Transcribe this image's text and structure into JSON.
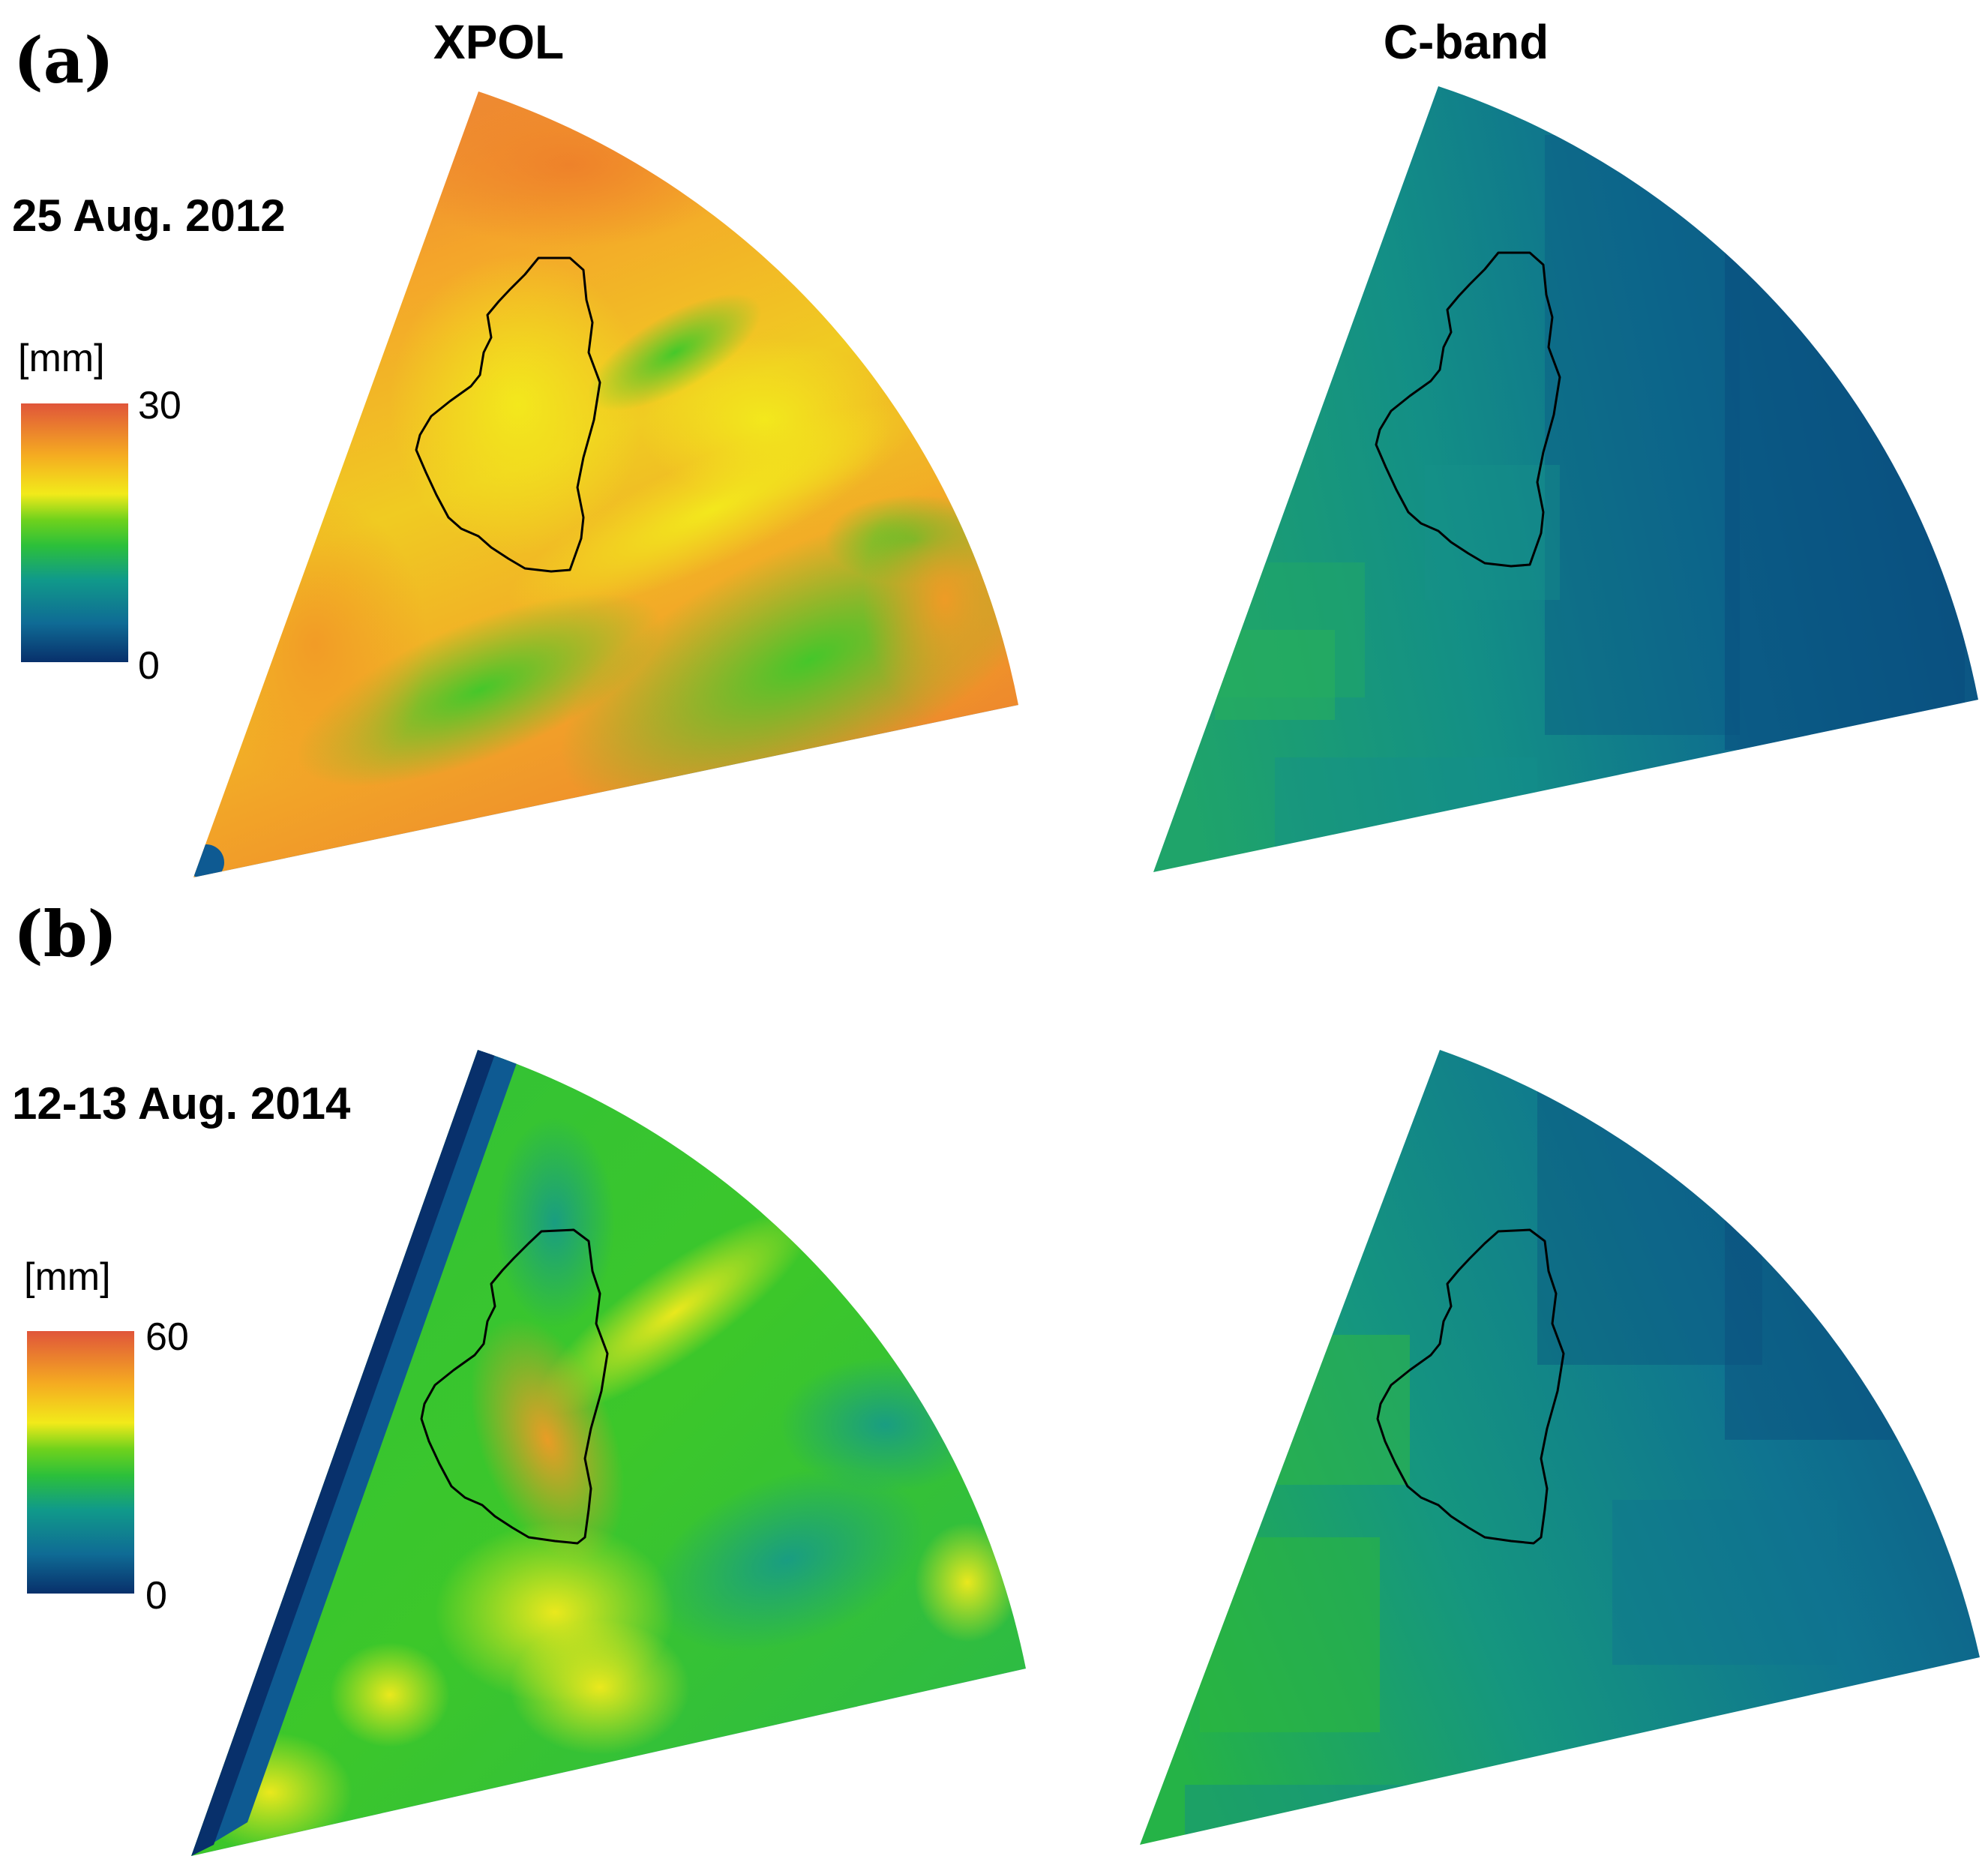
{
  "columns": {
    "left_title": "XPOL",
    "right_title": "C-band"
  },
  "panels": [
    {
      "label": "(a)",
      "date": "25 Aug. 2012",
      "colorbar": {
        "unit": "[mm]",
        "max_label": "30",
        "min_label": "0",
        "range_mm": [
          0,
          30
        ]
      },
      "xpol": {
        "description_values_mm": {
          "north_arc": 25,
          "catchment": 20,
          "central_band": 12,
          "southeast_band": 11,
          "south_edge": 2
        }
      },
      "cband": {
        "description_values_mm": {
          "west": 9,
          "center": 7,
          "east": 3
        }
      }
    },
    {
      "label": "(b)",
      "date": "12-13 Aug. 2014",
      "colorbar": {
        "unit": "[mm]",
        "max_label": "60",
        "min_label": "0",
        "range_mm": [
          0,
          60
        ]
      },
      "xpol": {
        "description_values_mm": {
          "general": 25,
          "catchment_south": 45,
          "ridge": 38,
          "west_edge": 3,
          "south_edge": 3
        }
      },
      "cband": {
        "description_values_mm": {
          "west": 22,
          "center": 12,
          "east": 6
        }
      }
    }
  ],
  "colors": {
    "colormap": [
      "#08306b",
      "#0e5a92",
      "#108c8c",
      "#1fb07a",
      "#33c71c",
      "#8ed81c",
      "#f2e81a",
      "#f5b020",
      "#ee7a2a",
      "#e0553a"
    ],
    "catchment_outline": "#000000"
  }
}
